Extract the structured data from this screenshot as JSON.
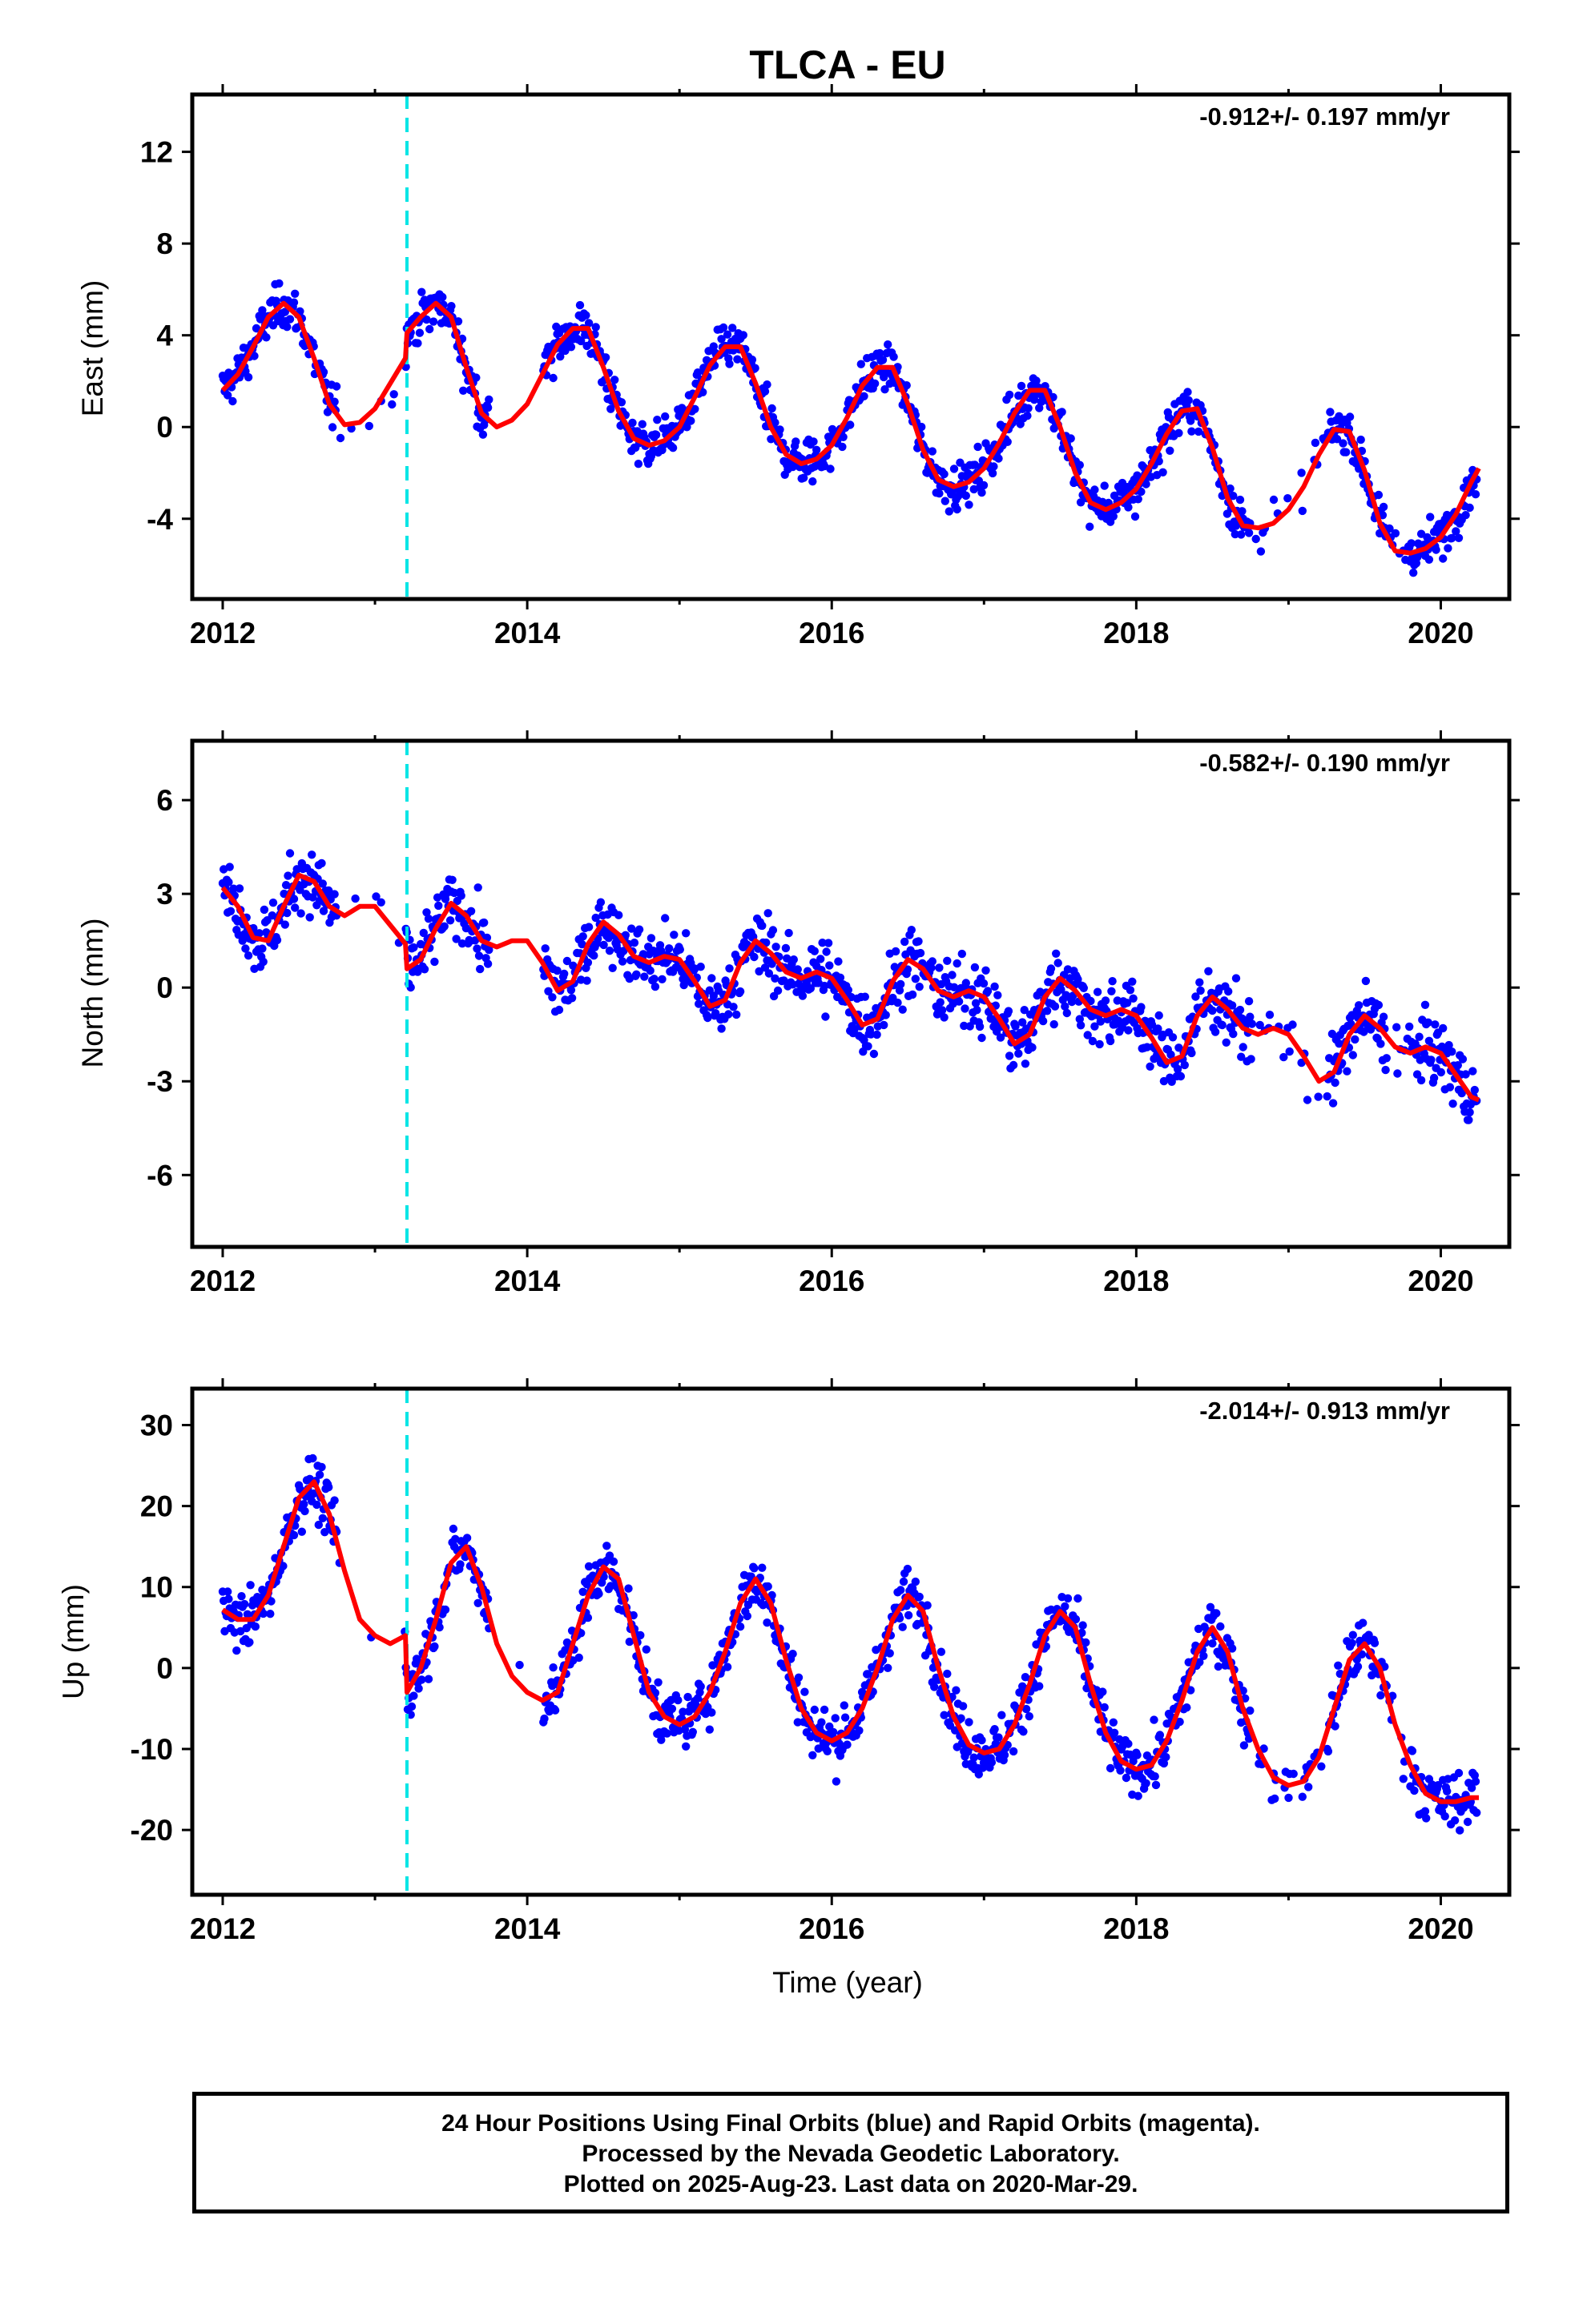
{
  "title": "TLCA - EU",
  "xlabel": "Time (year)",
  "footer": {
    "line1": "24 Hour Positions Using Final Orbits (blue) and Rapid Orbits (magenta).",
    "line2": "Processed by the Nevada Geodetic Laboratory.",
    "line3": "Plotted on 2025-Aug-23. Last data on 2020-Mar-29."
  },
  "colors": {
    "points": "#0000ff",
    "model": "#ff0000",
    "equipment_change": "#00e5e5"
  },
  "chart_data": [
    {
      "type": "scatter",
      "component": "east",
      "ylabel": "East (mm)",
      "rate_label": "-0.912+/- 0.197 mm/yr",
      "xlim": [
        2011.8,
        2020.45
      ],
      "ylim": [
        -7.5,
        14.5
      ],
      "xticks": [
        2012,
        2014,
        2016,
        2018,
        2020
      ],
      "yticks": [
        -4,
        0,
        4,
        8,
        12
      ],
      "grid": false,
      "equipment_change_x": 2013.21,
      "model": {
        "name": "model",
        "x": [
          2012.0,
          2012.1,
          2012.2,
          2012.3,
          2012.4,
          2012.5,
          2012.6,
          2012.7,
          2012.8,
          2012.9,
          2013.0,
          2013.1,
          2013.2,
          2013.21,
          2013.3,
          2013.4,
          2013.5,
          2013.6,
          2013.7,
          2013.8,
          2013.9,
          2014.0,
          2014.1,
          2014.2,
          2014.3,
          2014.4,
          2014.5,
          2014.6,
          2014.7,
          2014.8,
          2014.9,
          2015.0,
          2015.1,
          2015.2,
          2015.3,
          2015.4,
          2015.5,
          2015.6,
          2015.7,
          2015.8,
          2015.9,
          2016.0,
          2016.1,
          2016.2,
          2016.3,
          2016.4,
          2016.5,
          2016.6,
          2016.7,
          2016.8,
          2016.9,
          2017.0,
          2017.1,
          2017.2,
          2017.3,
          2017.4,
          2017.5,
          2017.6,
          2017.7,
          2017.8,
          2017.9,
          2018.0,
          2018.1,
          2018.2,
          2018.3,
          2018.4,
          2018.5,
          2018.6,
          2018.7,
          2018.8,
          2018.9,
          2019.0,
          2019.1,
          2019.2,
          2019.3,
          2019.4,
          2019.5,
          2019.6,
          2019.7,
          2019.8,
          2019.9,
          2020.0,
          2020.1,
          2020.2,
          2020.25
        ],
        "y": [
          1.6,
          2.3,
          3.5,
          4.8,
          5.4,
          4.8,
          3.0,
          1.0,
          0.1,
          0.2,
          0.8,
          1.9,
          3.0,
          4.1,
          4.8,
          5.4,
          4.8,
          2.6,
          0.6,
          0.0,
          0.3,
          1.0,
          2.3,
          3.6,
          4.3,
          4.3,
          2.6,
          0.7,
          -0.5,
          -0.8,
          -0.6,
          0.0,
          1.3,
          2.7,
          3.5,
          3.5,
          1.9,
          0.0,
          -1.2,
          -1.6,
          -1.4,
          -0.8,
          0.4,
          1.8,
          2.6,
          2.6,
          1.0,
          -1.0,
          -2.3,
          -2.6,
          -2.4,
          -1.8,
          -0.7,
          0.6,
          1.6,
          1.6,
          0.0,
          -2.0,
          -3.3,
          -3.6,
          -3.3,
          -2.7,
          -1.6,
          -0.3,
          0.7,
          0.8,
          -0.9,
          -3.1,
          -4.3,
          -4.4,
          -4.2,
          -3.6,
          -2.6,
          -1.2,
          -0.1,
          -0.2,
          -1.9,
          -4.2,
          -5.4,
          -5.5,
          -5.3,
          -4.8,
          -3.8,
          -2.4,
          -1.8
        ]
      }
    },
    {
      "type": "scatter",
      "component": "north",
      "ylabel": "North (mm)",
      "rate_label": "-0.582+/- 0.190 mm/yr",
      "xlim": [
        2011.8,
        2020.45
      ],
      "ylim": [
        -8.3,
        7.9
      ],
      "xticks": [
        2012,
        2014,
        2016,
        2018,
        2020
      ],
      "yticks": [
        -6,
        -3,
        0,
        3,
        6
      ],
      "grid": false,
      "equipment_change_x": 2013.21,
      "model": {
        "name": "model",
        "x": [
          2012.0,
          2012.1,
          2012.2,
          2012.3,
          2012.4,
          2012.5,
          2012.6,
          2012.7,
          2012.8,
          2012.9,
          2013.0,
          2013.1,
          2013.2,
          2013.21,
          2013.3,
          2013.4,
          2013.5,
          2013.6,
          2013.7,
          2013.8,
          2013.9,
          2014.0,
          2014.1,
          2014.2,
          2014.3,
          2014.4,
          2014.5,
          2014.6,
          2014.7,
          2014.8,
          2014.9,
          2015.0,
          2015.1,
          2015.2,
          2015.3,
          2015.4,
          2015.5,
          2015.6,
          2015.7,
          2015.8,
          2015.9,
          2016.0,
          2016.1,
          2016.2,
          2016.3,
          2016.4,
          2016.5,
          2016.6,
          2016.7,
          2016.8,
          2016.9,
          2017.0,
          2017.1,
          2017.2,
          2017.3,
          2017.4,
          2017.5,
          2017.6,
          2017.7,
          2017.8,
          2017.9,
          2018.0,
          2018.1,
          2018.2,
          2018.3,
          2018.4,
          2018.5,
          2018.6,
          2018.7,
          2018.8,
          2018.9,
          2019.0,
          2019.1,
          2019.2,
          2019.3,
          2019.4,
          2019.5,
          2019.6,
          2019.7,
          2019.8,
          2019.9,
          2020.0,
          2020.1,
          2020.2,
          2020.25
        ],
        "y": [
          3.2,
          2.6,
          1.6,
          1.5,
          2.6,
          3.6,
          3.4,
          2.6,
          2.3,
          2.6,
          2.6,
          2.0,
          1.4,
          0.6,
          0.9,
          1.9,
          2.7,
          2.3,
          1.5,
          1.3,
          1.5,
          1.5,
          0.8,
          -0.1,
          0.2,
          1.4,
          2.1,
          1.7,
          1.0,
          0.8,
          1.0,
          0.9,
          0.2,
          -0.6,
          -0.4,
          0.8,
          1.5,
          1.1,
          0.5,
          0.3,
          0.5,
          0.3,
          -0.4,
          -1.2,
          -1.0,
          0.2,
          0.9,
          0.6,
          -0.1,
          -0.3,
          -0.1,
          -0.3,
          -1.0,
          -1.8,
          -1.5,
          -0.3,
          0.3,
          -0.1,
          -0.7,
          -0.9,
          -0.7,
          -0.9,
          -1.6,
          -2.4,
          -2.2,
          -0.9,
          -0.3,
          -0.7,
          -1.3,
          -1.5,
          -1.3,
          -1.5,
          -2.2,
          -3.0,
          -2.7,
          -1.5,
          -0.9,
          -1.3,
          -1.9,
          -2.1,
          -1.9,
          -2.1,
          -2.8,
          -3.5,
          -3.6
        ]
      }
    },
    {
      "type": "scatter",
      "component": "up",
      "ylabel": "Up (mm)",
      "rate_label": "-2.014+/- 0.913 mm/yr",
      "xlim": [
        2011.8,
        2020.45
      ],
      "ylim": [
        -28,
        34.5
      ],
      "xticks": [
        2012,
        2014,
        2016,
        2018,
        2020
      ],
      "yticks": [
        -20,
        -10,
        0,
        10,
        20,
        30
      ],
      "grid": false,
      "equipment_change_x": 2013.21,
      "model": {
        "name": "model",
        "x": [
          2012.0,
          2012.1,
          2012.2,
          2012.3,
          2012.4,
          2012.5,
          2012.6,
          2012.7,
          2012.8,
          2012.9,
          2013.0,
          2013.1,
          2013.2,
          2013.21,
          2013.3,
          2013.4,
          2013.5,
          2013.6,
          2013.7,
          2013.8,
          2013.9,
          2014.0,
          2014.1,
          2014.2,
          2014.3,
          2014.4,
          2014.5,
          2014.6,
          2014.7,
          2014.8,
          2014.9,
          2015.0,
          2015.1,
          2015.2,
          2015.3,
          2015.4,
          2015.5,
          2015.6,
          2015.7,
          2015.8,
          2015.9,
          2016.0,
          2016.1,
          2016.2,
          2016.3,
          2016.4,
          2016.5,
          2016.6,
          2016.7,
          2016.8,
          2016.9,
          2017.0,
          2017.1,
          2017.2,
          2017.3,
          2017.4,
          2017.5,
          2017.6,
          2017.7,
          2017.8,
          2017.9,
          2018.0,
          2018.1,
          2018.2,
          2018.3,
          2018.4,
          2018.5,
          2018.6,
          2018.7,
          2018.8,
          2018.9,
          2019.0,
          2019.1,
          2019.2,
          2019.3,
          2019.4,
          2019.5,
          2019.6,
          2019.7,
          2019.8,
          2019.9,
          2020.0,
          2020.1,
          2020.2,
          2020.25
        ],
        "y": [
          7.2,
          6.0,
          6.0,
          9.0,
          15.0,
          21.0,
          23.0,
          19.0,
          12.0,
          6.0,
          4.0,
          3.0,
          4.0,
          -3.0,
          0.0,
          6.0,
          13.0,
          15.0,
          10.0,
          3.0,
          -1.0,
          -3.0,
          -4.0,
          -3.0,
          3.0,
          9.0,
          12.5,
          11.0,
          4.0,
          -3.0,
          -6.0,
          -7.0,
          -6.0,
          -3.0,
          2.0,
          8.0,
          11.0,
          8.0,
          1.0,
          -5.0,
          -8.0,
          -9.0,
          -8.0,
          -5.0,
          0.0,
          6.0,
          9.0,
          7.0,
          0.0,
          -6.0,
          -9.5,
          -10.5,
          -10.0,
          -7.0,
          -2.0,
          4.0,
          7.0,
          5.0,
          -2.0,
          -8.0,
          -11.5,
          -12.5,
          -12.0,
          -9.0,
          -4.0,
          2.0,
          5.0,
          2.0,
          -5.0,
          -10.0,
          -13.5,
          -14.5,
          -14.0,
          -11.0,
          -5.0,
          1.0,
          3.0,
          0.0,
          -7.0,
          -12.0,
          -15.5,
          -16.5,
          -16.5,
          -16.0,
          -16.0
        ]
      }
    }
  ]
}
